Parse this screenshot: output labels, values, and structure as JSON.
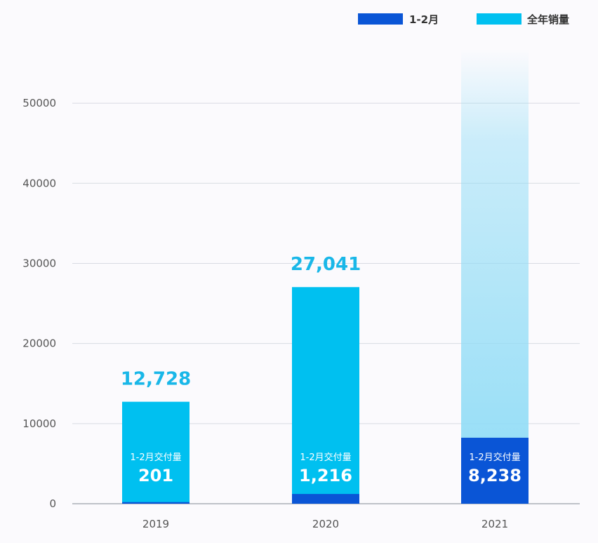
{
  "chart_data": {
    "type": "bar",
    "categories": [
      "2019",
      "2020",
      "2021"
    ],
    "series": [
      {
        "name": "1-2月",
        "values": [
          201,
          1216,
          8238
        ],
        "labels": [
          "201",
          "1,216",
          "8,238"
        ]
      },
      {
        "name": "全年销量",
        "values": [
          12728,
          27041,
          null
        ],
        "labels": [
          "12,728",
          "27,041",
          ""
        ]
      }
    ],
    "inner_label": "1-2月交付量",
    "yticks": [
      0,
      10000,
      20000,
      30000,
      40000,
      50000
    ],
    "ylim": [
      0,
      55000
    ],
    "grid": true,
    "legend_position": "top-right",
    "colors": {
      "jan_feb": "#0a55d6",
      "annual": "#00c0f0",
      "projected": "#8fdcf6",
      "total_text": "#19b7e8"
    }
  }
}
